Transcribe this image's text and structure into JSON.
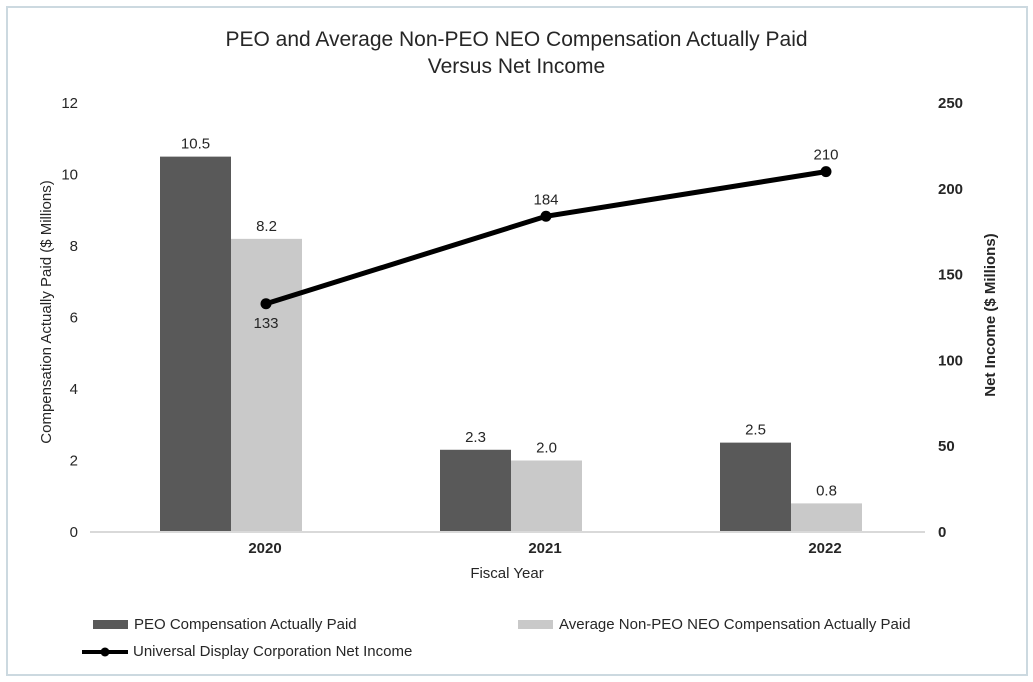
{
  "title": {
    "line1": "PEO and Average Non-PEO NEO Compensation Actually Paid",
    "line2": "Versus Net Income"
  },
  "axes": {
    "left": {
      "title": "Compensation Actually Paid ($ Millions)",
      "ticks": [
        0,
        2,
        4,
        6,
        8,
        10,
        12
      ],
      "range": [
        0,
        12
      ]
    },
    "right": {
      "title": "Net Income ($ Millions)",
      "ticks": [
        0,
        50,
        100,
        150,
        200,
        250
      ],
      "range": [
        0,
        250
      ]
    },
    "x": {
      "title": "Fiscal Year"
    }
  },
  "chart_data": {
    "type": "bar",
    "subtype": "grouped-bars-with-line-overlay",
    "title": "PEO and Average Non-PEO NEO Compensation Actually Paid Versus Net Income",
    "xlabel": "Fiscal Year",
    "ylabel": "Compensation Actually Paid ($ Millions)",
    "ylabel_right": "Net Income ($ Millions)",
    "ylim": [
      0,
      12
    ],
    "ylim_right": [
      0,
      250
    ],
    "grid": false,
    "data_labels": true,
    "legend_position": "bottom",
    "categories": [
      "2020",
      "2021",
      "2022"
    ],
    "series": [
      {
        "name": "PEO Compensation Actually Paid",
        "type": "bar",
        "axis": "left",
        "color": "#595959",
        "values": [
          10.5,
          2.3,
          2.5
        ],
        "labels": [
          "10.5",
          "2.3",
          "2.5"
        ]
      },
      {
        "name": "Average Non-PEO NEO Compensation Actually Paid",
        "type": "bar",
        "axis": "left",
        "color": "#c9c9c9",
        "values": [
          8.2,
          2.0,
          0.8
        ],
        "labels": [
          "8.2",
          "2.0",
          "0.8"
        ]
      },
      {
        "name": "Universal Display Corporation Net Income",
        "type": "line",
        "axis": "right",
        "color": "#000000",
        "values": [
          133,
          184,
          210
        ],
        "labels": [
          "133",
          "184",
          "210"
        ],
        "label_positions": [
          "below",
          "above",
          "above"
        ]
      }
    ]
  },
  "colors": {
    "bar_dark": "#595959",
    "bar_light": "#c9c9c9",
    "line": "#000000",
    "axis_line": "#d9d9d9",
    "text": "#262626",
    "chart_border": "#ccd9e0"
  }
}
